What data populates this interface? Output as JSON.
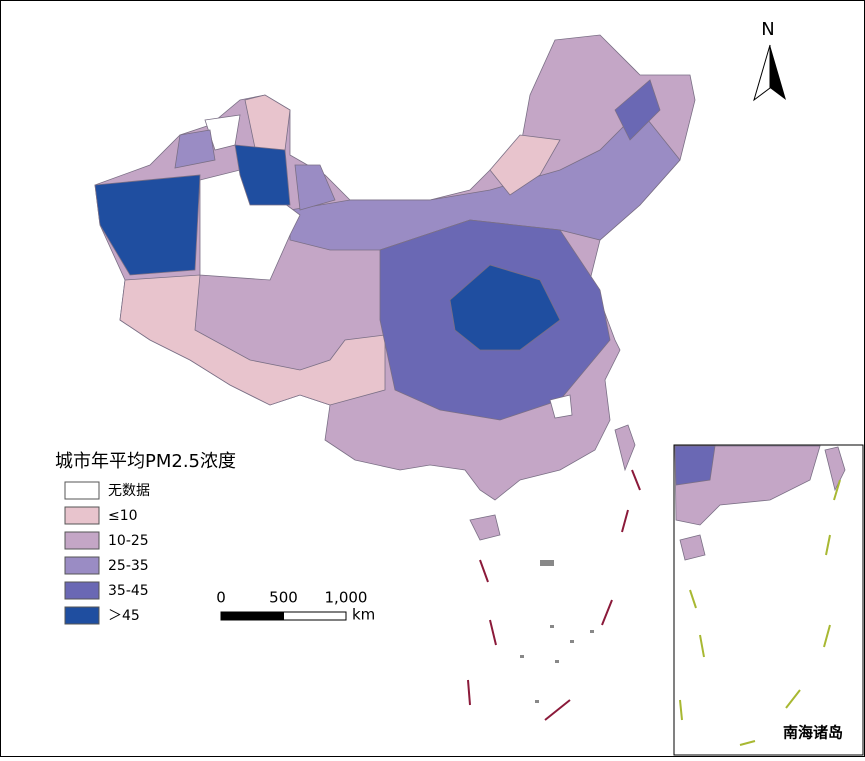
{
  "title": "城市年平均PM2.5浓度",
  "legend": [
    {
      "label": "无数据",
      "color": "#ffffff"
    },
    {
      "label": "≤10",
      "color": "#e8c4cd"
    },
    {
      "label": "10-25",
      "color": "#c4a6c6"
    },
    {
      "label": "25-35",
      "color": "#9a8cc4"
    },
    {
      "label": "35-45",
      "color": "#6a68b4"
    },
    {
      "label": "＞45",
      "color": "#1f4ea0"
    }
  ],
  "scale_bar": {
    "ticks": [
      {
        "value": 0,
        "label": "0"
      },
      {
        "value": 500,
        "label": "500"
      },
      {
        "value": 1000,
        "label": "1,000"
      }
    ],
    "unit": "km"
  },
  "north": "N",
  "inset_label": "南海诸岛"
}
